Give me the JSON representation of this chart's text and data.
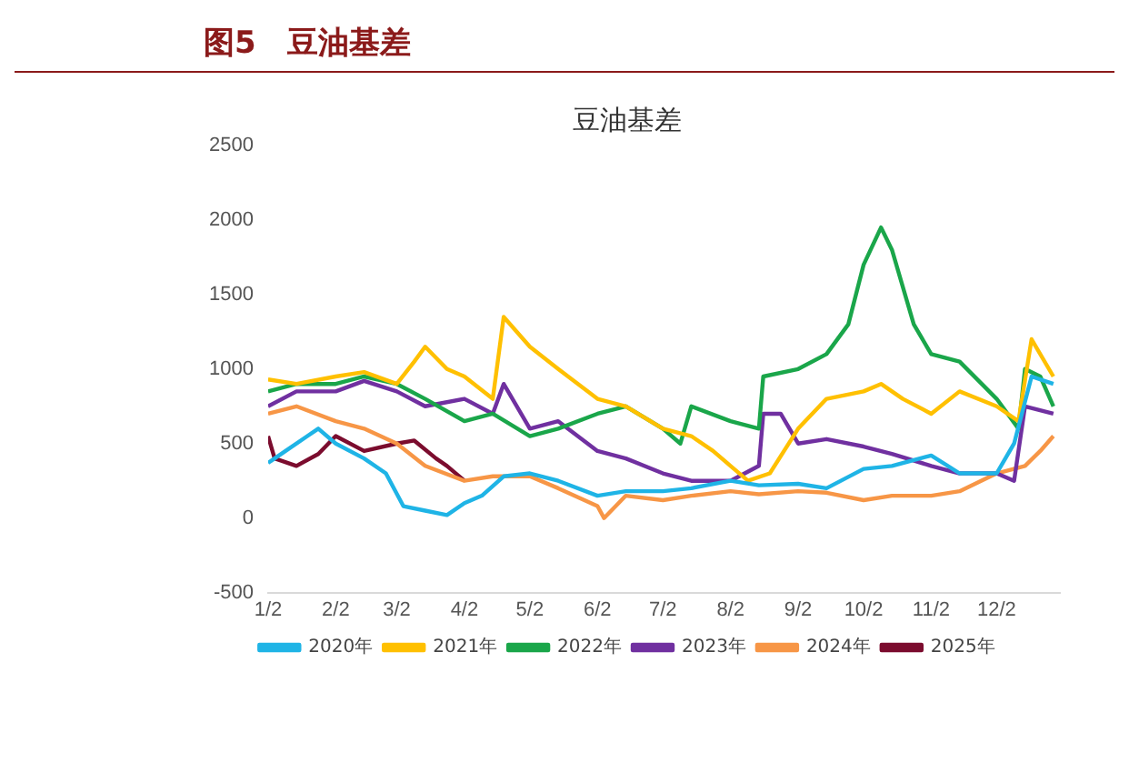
{
  "chart_data": {
    "type": "line",
    "title": "图5　豆油基差",
    "subtitle": "豆油基差",
    "xlim": [
      "--01-02",
      "--12-31"
    ],
    "xticks": [
      {
        "value": "--01-02",
        "label": "1/2"
      },
      {
        "value": "--02-02",
        "label": "2/2"
      },
      {
        "value": "--03-02",
        "label": "3/2"
      },
      {
        "value": "--04-02",
        "label": "4/2"
      },
      {
        "value": "--05-02",
        "label": "5/2"
      },
      {
        "value": "--06-02",
        "label": "6/2"
      },
      {
        "value": "--07-02",
        "label": "7/2"
      },
      {
        "value": "--08-02",
        "label": "8/2"
      },
      {
        "value": "--09-02",
        "label": "9/2"
      },
      {
        "value": "--10-02",
        "label": "10/2"
      },
      {
        "value": "--11-02",
        "label": "11/2"
      },
      {
        "value": "--12-02",
        "label": "12/2"
      }
    ],
    "ylim": [
      -500,
      2500
    ],
    "yticks": [
      -500,
      0,
      500,
      1000,
      1500,
      2000,
      2500
    ],
    "grid": false,
    "legend": "bottom",
    "marker": "none",
    "line_style": "solid",
    "series": [
      {
        "name": "2020年",
        "color": "#1fb4e6",
        "x": [
          "--01-02",
          "--01-10",
          "--01-20",
          "--01-25",
          "--02-02",
          "--02-15",
          "--02-25",
          "--03-05",
          "--03-15",
          "--03-25",
          "--04-02",
          "--04-10",
          "--04-20",
          "--05-02",
          "--05-15",
          "--06-02",
          "--06-15",
          "--07-02",
          "--07-15",
          "--08-02",
          "--08-15",
          "--09-02",
          "--09-15",
          "--10-02",
          "--10-15",
          "--11-02",
          "--11-15",
          "--12-02",
          "--12-10",
          "--12-18",
          "--12-28"
        ],
        "values": [
          370,
          450,
          550,
          600,
          500,
          400,
          300,
          80,
          50,
          20,
          100,
          150,
          280,
          300,
          250,
          150,
          180,
          180,
          200,
          250,
          220,
          230,
          200,
          330,
          350,
          420,
          300,
          300,
          500,
          950,
          900
        ]
      },
      {
        "name": "2021年",
        "color": "#ffc000",
        "x": [
          "--01-02",
          "--01-15",
          "--02-02",
          "--02-15",
          "--03-02",
          "--03-10",
          "--03-15",
          "--03-25",
          "--04-02",
          "--04-15",
          "--04-20",
          "--05-02",
          "--05-15",
          "--06-02",
          "--06-15",
          "--07-02",
          "--07-15",
          "--07-25",
          "--08-02",
          "--08-10",
          "--08-20",
          "--09-02",
          "--09-15",
          "--10-02",
          "--10-10",
          "--10-20",
          "--11-02",
          "--11-15",
          "--12-02",
          "--12-12",
          "--12-18",
          "--12-28"
        ],
        "values": [
          930,
          900,
          950,
          980,
          900,
          1050,
          1150,
          1000,
          950,
          800,
          1350,
          1150,
          1000,
          800,
          750,
          600,
          550,
          450,
          350,
          250,
          300,
          600,
          800,
          850,
          900,
          800,
          700,
          850,
          750,
          650,
          1200,
          950
        ]
      },
      {
        "name": "2022年",
        "color": "#1aa64a",
        "x": [
          "--01-02",
          "--01-15",
          "--02-02",
          "--02-15",
          "--03-02",
          "--03-15",
          "--04-02",
          "--04-15",
          "--05-02",
          "--05-15",
          "--06-02",
          "--06-15",
          "--07-02",
          "--07-10",
          "--07-15",
          "--08-02",
          "--08-15",
          "--08-17",
          "--09-02",
          "--09-15",
          "--09-25",
          "--10-02",
          "--10-10",
          "--10-15",
          "--10-25",
          "--11-02",
          "--11-15",
          "--12-02",
          "--12-12",
          "--12-15",
          "--12-22",
          "--12-28"
        ],
        "values": [
          850,
          900,
          900,
          950,
          900,
          800,
          650,
          700,
          550,
          600,
          700,
          750,
          600,
          500,
          750,
          650,
          600,
          950,
          1000,
          1100,
          1300,
          1700,
          1950,
          1800,
          1300,
          1100,
          1050,
          800,
          600,
          1000,
          950,
          750
        ]
      },
      {
        "name": "2023年",
        "color": "#7030a0",
        "x": [
          "--01-02",
          "--01-15",
          "--02-02",
          "--02-15",
          "--03-02",
          "--03-15",
          "--04-02",
          "--04-15",
          "--04-20",
          "--05-02",
          "--05-15",
          "--06-02",
          "--06-15",
          "--07-02",
          "--07-15",
          "--08-02",
          "--08-15",
          "--08-17",
          "--08-25",
          "--09-02",
          "--09-15",
          "--10-02",
          "--10-15",
          "--11-02",
          "--11-15",
          "--12-02",
          "--12-10",
          "--12-15",
          "--12-28"
        ],
        "values": [
          750,
          850,
          850,
          920,
          850,
          750,
          800,
          700,
          900,
          600,
          650,
          450,
          400,
          300,
          250,
          250,
          350,
          700,
          700,
          500,
          530,
          480,
          430,
          350,
          300,
          300,
          250,
          750,
          700
        ]
      },
      {
        "name": "2024年",
        "color": "#f79646",
        "x": [
          "--01-02",
          "--01-15",
          "--02-02",
          "--02-15",
          "--03-02",
          "--03-15",
          "--04-02",
          "--04-15",
          "--05-02",
          "--05-15",
          "--06-02",
          "--06-05",
          "--06-15",
          "--07-02",
          "--07-15",
          "--08-02",
          "--08-15",
          "--09-02",
          "--09-15",
          "--10-02",
          "--10-15",
          "--11-02",
          "--11-15",
          "--12-02",
          "--12-15",
          "--12-22",
          "--12-28"
        ],
        "values": [
          700,
          750,
          650,
          600,
          500,
          350,
          250,
          280,
          280,
          200,
          80,
          0,
          150,
          120,
          150,
          180,
          160,
          180,
          170,
          120,
          150,
          150,
          180,
          300,
          350,
          450,
          550
        ]
      },
      {
        "name": "2025年",
        "color": "#7b0c2e",
        "x": [
          "--01-02",
          "--01-05",
          "--01-15",
          "--01-25",
          "--02-02",
          "--02-15",
          "--03-02",
          "--03-10",
          "--03-20",
          "--03-25",
          "--04-02"
        ],
        "values": [
          550,
          400,
          350,
          430,
          550,
          450,
          500,
          520,
          400,
          350,
          250
        ]
      }
    ]
  }
}
